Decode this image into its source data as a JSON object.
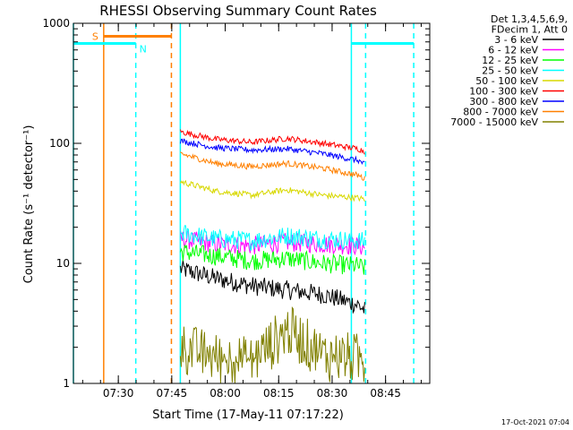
{
  "chart_data": {
    "type": "line",
    "title": "RHESSI Observing Summary Count Rates",
    "xlabel": "Start Time (17-May-11 07:17:22)",
    "ylabel": "Count Rate (s⁻¹ detector⁻¹)",
    "yscale": "log",
    "ylim": [
      1,
      1000
    ],
    "xlim_minutes": [
      0,
      100
    ],
    "x_ticks": [
      {
        "label": "07:30",
        "t": 12.6
      },
      {
        "label": "07:45",
        "t": 27.6
      },
      {
        "label": "08:00",
        "t": 42.6
      },
      {
        "label": "08:15",
        "t": 57.6
      },
      {
        "label": "08:30",
        "t": 72.6
      },
      {
        "label": "08:45",
        "t": 87.6
      }
    ],
    "y_ticks": [
      {
        "label": "1",
        "v": 1
      },
      {
        "label": "10",
        "v": 10
      },
      {
        "label": "100",
        "v": 100
      },
      {
        "label": "1000",
        "v": 1000
      }
    ],
    "legend_header": [
      "Det 1,3,4,5,6,9,",
      "FDecim 1, Att 0"
    ],
    "legend_position": "right",
    "series": [
      {
        "name": "3 - 6 keV",
        "color": "#000000",
        "x": [
          30,
          40,
          50,
          60,
          70,
          80,
          82
        ],
        "values": [
          9,
          7.5,
          6.5,
          6,
          5.5,
          4.5,
          4
        ]
      },
      {
        "name": "6 - 12 keV",
        "color": "#ff00ff",
        "x": [
          30,
          40,
          50,
          60,
          70,
          80,
          82
        ],
        "values": [
          16,
          14.5,
          14,
          15,
          14.5,
          14,
          13.5
        ]
      },
      {
        "name": "12 - 25 keV",
        "color": "#00ff00",
        "x": [
          30,
          40,
          50,
          60,
          70,
          80,
          82
        ],
        "values": [
          12.5,
          11.5,
          10.5,
          11,
          10,
          9.5,
          9
        ]
      },
      {
        "name": "25 - 50 keV",
        "color": "#00ffff",
        "x": [
          30,
          40,
          50,
          60,
          70,
          80,
          82
        ],
        "values": [
          18,
          16,
          15.5,
          17,
          16,
          15.5,
          15
        ]
      },
      {
        "name": "50 - 100 keV",
        "color": "#d8d800",
        "x": [
          30,
          40,
          50,
          60,
          70,
          80,
          82
        ],
        "values": [
          48,
          40,
          37,
          41,
          37,
          35,
          34
        ]
      },
      {
        "name": "100 - 300 keV",
        "color": "#ff0000",
        "x": [
          30,
          40,
          50,
          60,
          70,
          80,
          82
        ],
        "values": [
          125,
          108,
          102,
          110,
          100,
          90,
          85
        ]
      },
      {
        "name": "300 - 800 keV",
        "color": "#0000ff",
        "x": [
          30,
          40,
          50,
          60,
          70,
          80,
          82
        ],
        "values": [
          105,
          92,
          88,
          90,
          82,
          72,
          66
        ]
      },
      {
        "name": "800 - 7000 keV",
        "color": "#ff8000",
        "x": [
          30,
          40,
          50,
          60,
          70,
          80,
          82
        ],
        "values": [
          82,
          68,
          64,
          68,
          62,
          54,
          50
        ]
      },
      {
        "name": "7000 - 15000 keV",
        "color": "#808000",
        "x": [
          30,
          40,
          50,
          60,
          70,
          80,
          82
        ],
        "values": [
          2,
          1.6,
          1.5,
          2.8,
          1.7,
          1.6,
          1.5
        ]
      }
    ],
    "annotations": [
      {
        "label": "S",
        "color": "#ff8000",
        "x_start": 8.5,
        "x_end": 27.5,
        "level": 780
      },
      {
        "label": "N",
        "color": "#00ffff",
        "x_start": 0,
        "x_end": 17.5,
        "level": 680
      },
      {
        "label": "",
        "color": "#00ffff",
        "x_start": 78,
        "x_end": 95.5,
        "level": 680
      }
    ],
    "markers": [
      {
        "x": 0,
        "color": "#00ffff",
        "style": "solid"
      },
      {
        "x": 8.5,
        "color": "#ff8000",
        "style": "solid"
      },
      {
        "x": 17.5,
        "color": "#00ffff",
        "style": "dashed"
      },
      {
        "x": 27.5,
        "color": "#ff8000",
        "style": "dashed"
      },
      {
        "x": 30,
        "color": "#00ffff",
        "style": "solid"
      },
      {
        "x": 78,
        "color": "#00ffff",
        "style": "solid"
      },
      {
        "x": 82,
        "color": "#00ffff",
        "style": "dashed"
      },
      {
        "x": 95.5,
        "color": "#00ffff",
        "style": "dashed"
      }
    ]
  },
  "footer": {
    "timestamp": "17-Oct-2021 07:04"
  }
}
